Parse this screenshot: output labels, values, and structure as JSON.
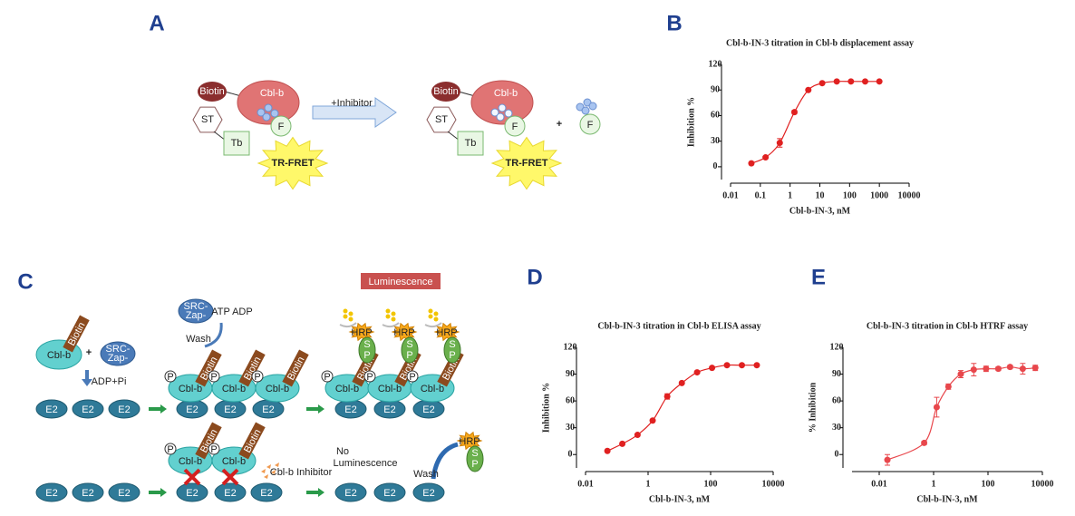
{
  "panel_labels": [
    "A",
    "B",
    "C",
    "D",
    "E"
  ],
  "diagram_a": {
    "bound": {
      "tag": "Biotin",
      "protein": "Cbl-b",
      "donor": "ST",
      "label": "Tb",
      "probe": "F",
      "signal": "TR-FRET"
    },
    "arrow": "+Inhibitor",
    "displaced": {
      "tag": "Biotin",
      "protein": "Cbl-b",
      "donor": "ST",
      "label": "Tb",
      "probe": "F",
      "signal": "TR-FRET"
    },
    "plus": "+",
    "free_probe": "F"
  },
  "diagram_c": {
    "readout": "Luminescence",
    "reactants": {
      "protein": "Cbl-b",
      "tag": "Biotin",
      "plus": "+",
      "enzyme": [
        "SRC-",
        "Zap-"
      ],
      "byproduct": "ADP+Pi",
      "substrates": [
        "E2",
        "E2",
        "E2"
      ]
    },
    "wash_step": {
      "enzyme": [
        "SRC-",
        "Zap-"
      ],
      "cofactors": "ATP ADP",
      "wash": "Wash"
    },
    "ubiquitinated": [
      {
        "phospho": "P",
        "protein": "Cbl-b",
        "tag": "Biotin",
        "substrate": "E2"
      },
      {
        "phospho": "P",
        "protein": "Cbl-b",
        "tag": "Biotin",
        "substrate": "E2"
      },
      {
        "phospho": "P",
        "protein": "Cbl-b",
        "tag": "Biotin",
        "substrate": "E2"
      }
    ],
    "detected": [
      {
        "phospho": "P",
        "protein": "Cbl-b",
        "tag": "Biotin",
        "substrate": "E2",
        "hrp": "HRP",
        "sp": [
          "S",
          "P"
        ]
      },
      {
        "phospho": "P",
        "protein": "Cbl-b",
        "tag": "Biotin",
        "substrate": "E2",
        "hrp": "HRP",
        "sp": [
          "S",
          "P"
        ]
      },
      {
        "phospho": "P",
        "protein": "Cbl-b",
        "tag": "Biotin",
        "substrate": "E2",
        "hrp": "HRP",
        "sp": [
          "S",
          "P"
        ]
      }
    ],
    "inhibited_substrates": [
      "E2",
      "E2",
      "E2"
    ],
    "inhibited": [
      {
        "phospho": "P",
        "protein": "Cbl-b",
        "tag": "Biotin",
        "substrate": "E2"
      },
      {
        "phospho": "P",
        "protein": "Cbl-b",
        "tag": "Biotin",
        "substrate": "E2"
      }
    ],
    "free_substrate": "E2",
    "inhibitor": "Cbl-b Inhibitor",
    "no_signal": [
      "No",
      "Luminescence"
    ],
    "wash": "Wash",
    "free_detection": {
      "hrp": "HRP",
      "sp": [
        "S",
        "P"
      ]
    },
    "final_substrates": [
      "E2",
      "E2",
      "E2"
    ]
  },
  "chart_data": [
    {
      "type": "line",
      "title": "Cbl-b-IN-3 titration in Cbl-b displacement assay",
      "x_label": "Cbl-b-IN-3, nM",
      "y_label": "Inhibition %",
      "x": [
        0.05,
        0.15,
        0.45,
        1.4,
        4.1,
        12,
        37,
        111,
        333,
        1000
      ],
      "values": [
        4,
        11,
        28,
        64,
        90,
        98,
        100,
        100,
        100,
        100
      ],
      "error": [
        0,
        0,
        5,
        2,
        1,
        0,
        0,
        0,
        0,
        0
      ],
      "color": "#e02020",
      "log_x": true,
      "xlim": [
        0.01,
        10000
      ],
      "xticks": [
        0.01,
        0.1,
        1,
        10,
        100,
        1000,
        10000
      ],
      "ylim": [
        -15,
        120
      ],
      "yticks": [
        0,
        30,
        60,
        90,
        120
      ]
    },
    {
      "type": "line",
      "title": "Cbl-b-IN-3 titration in Cbl-b ELISA assay",
      "x_label": "Cbl-b-IN-3, nM",
      "y_label": "Inhibition %",
      "x": [
        0.05,
        0.15,
        0.46,
        1.4,
        4.1,
        12,
        37,
        111,
        333,
        1000,
        3000
      ],
      "values": [
        4,
        12,
        22,
        38,
        65,
        80,
        92,
        97,
        100,
        100,
        100
      ],
      "error": [
        0,
        0,
        0,
        0,
        3,
        0,
        0,
        0,
        0,
        0,
        0
      ],
      "color": "#e02020",
      "log_x": true,
      "xlim": [
        0.01,
        10000
      ],
      "xticks": [
        0.01,
        1,
        100,
        10000
      ],
      "ylim": [
        -15,
        120
      ],
      "yticks": [
        0,
        30,
        60,
        90,
        120
      ]
    },
    {
      "type": "line",
      "title": "Cbl-b-IN-3 titration in Cbl-b HTRF assay",
      "x_label": "Cbl-b-IN-3, nM",
      "y_label": "% Inhibition",
      "x": [
        0.02,
        0.45,
        1.3,
        3.5,
        10,
        30,
        85,
        240,
        650,
        1900,
        5500
      ],
      "values": [
        -6,
        13,
        53,
        76,
        90,
        95,
        96,
        96,
        98,
        96,
        97
      ],
      "error": [
        6,
        2,
        11,
        3,
        4,
        7,
        3,
        2,
        2,
        6,
        3
      ],
      "color": "#e8474c",
      "log_x": true,
      "xlim": [
        0.001,
        10000
      ],
      "xticks": [
        0.01,
        1,
        100,
        10000
      ],
      "ylim": [
        -15,
        120
      ],
      "yticks": [
        0,
        30,
        60,
        90,
        120
      ]
    }
  ]
}
